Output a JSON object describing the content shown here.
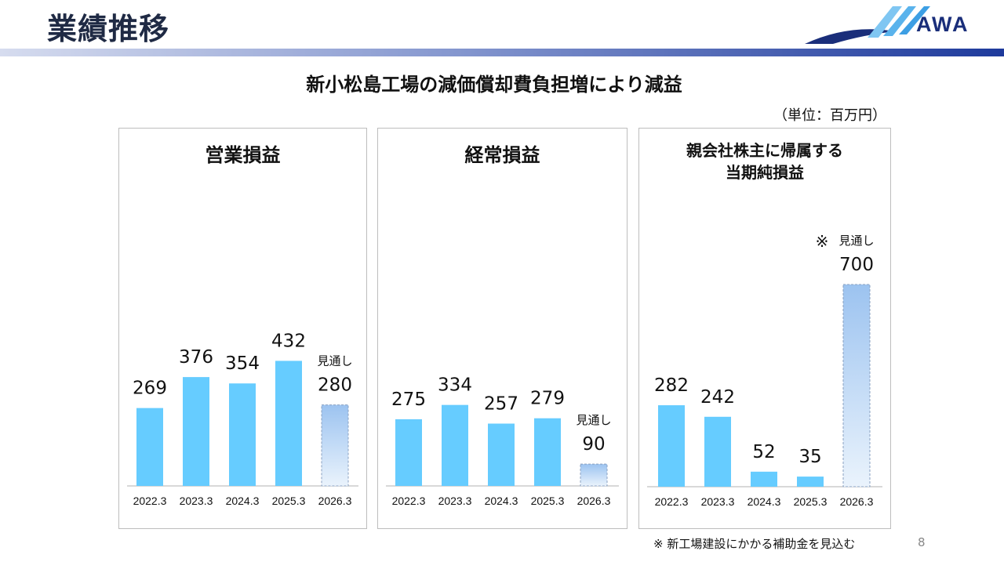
{
  "header": {
    "title": "業績推移",
    "logo_text": "AWA"
  },
  "headline": "新小松島工場の減価償却費負担増により減益",
  "unit_label": "（単位：百万円）",
  "colors": {
    "bar": "#66ccff",
    "forecast_top": "#9cc3f0",
    "forecast_bottom": "#eaf3fc",
    "axis": "#b0b0b0",
    "band_dark": "#1e3a9c"
  },
  "chart_data": [
    {
      "type": "bar",
      "title": "営業損益",
      "categories": [
        "2022.3",
        "2023.3",
        "2024.3",
        "2025.3",
        "2026.3"
      ],
      "values": [
        269,
        376,
        354,
        432,
        280
      ],
      "value_labels": [
        "269",
        "376",
        "354",
        "432",
        "280"
      ],
      "forecast_index": 4,
      "forecast_label": "見通し",
      "forecast_marker": ""
    },
    {
      "type": "bar",
      "title": "経常損益",
      "categories": [
        "2022.3",
        "2023.3",
        "2024.3",
        "2025.3",
        "2026.3"
      ],
      "values": [
        275,
        334,
        257,
        279,
        90
      ],
      "value_labels": [
        "275",
        "334",
        "257",
        "279",
        "90"
      ],
      "forecast_index": 4,
      "forecast_label": "見通し",
      "forecast_marker": ""
    },
    {
      "type": "bar",
      "title": "親会社株主に帰属する\n当期純損益",
      "title_lines": [
        "親会社株主に帰属する",
        "当期純損益"
      ],
      "categories": [
        "2022.3",
        "2023.3",
        "2024.3",
        "2025.3",
        "2026.3"
      ],
      "values": [
        282,
        242,
        52,
        35,
        700
      ],
      "value_labels": [
        "282",
        "242",
        "52",
        "35",
        "700"
      ],
      "forecast_index": 4,
      "forecast_label": "見通し",
      "forecast_marker": "※"
    }
  ],
  "footnote": "※ 新工場建設にかかる補助金を見込む",
  "page_number": "8"
}
